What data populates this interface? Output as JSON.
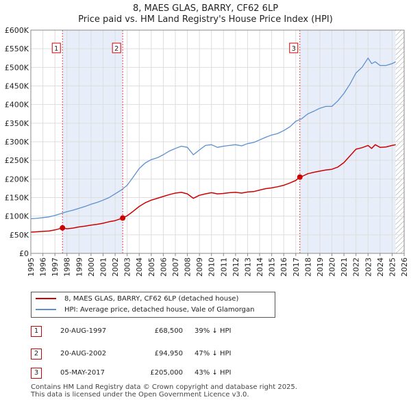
{
  "title_line1": "8, MAES GLAS, BARRY, CF62 6LP",
  "title_line2": "Price paid vs. HM Land Registry's House Price Index (HPI)",
  "legend": {
    "property_label": "8, MAES GLAS, BARRY, CF62 6LP (detached house)",
    "hpi_label": "HPI: Average price, detached house, Vale of Glamorgan"
  },
  "colors": {
    "property": "#cc0000",
    "hpi": "#5b8fcf",
    "shade": "#e8eef9",
    "grid": "#dddddd"
  },
  "sales": [
    {
      "num": "1",
      "date": "20-AUG-1997",
      "price": "£68,500",
      "hpi": "39% ↓ HPI"
    },
    {
      "num": "2",
      "date": "20-AUG-2002",
      "price": "£94,950",
      "hpi": "47% ↓ HPI"
    },
    {
      "num": "3",
      "date": "05-MAY-2017",
      "price": "£205,000",
      "hpi": "43% ↓ HPI"
    }
  ],
  "footer_line1": "Contains HM Land Registry data © Crown copyright and database right 2025.",
  "footer_line2": "This data is licensed under the Open Government Licence v3.0.",
  "chart_data": {
    "type": "line",
    "title": "Price paid vs. HM Land Registry's House Price Index (HPI)",
    "xlim": [
      1995,
      2026
    ],
    "ylim": [
      0,
      600000
    ],
    "x_ticks": [
      1995,
      1996,
      1997,
      1998,
      1999,
      2000,
      2001,
      2002,
      2003,
      2004,
      2005,
      2006,
      2007,
      2008,
      2009,
      2010,
      2011,
      2012,
      2013,
      2014,
      2015,
      2016,
      2017,
      2018,
      2019,
      2020,
      2021,
      2022,
      2023,
      2024,
      2025,
      2026
    ],
    "x_tick_labels": [
      "1995",
      "1996",
      "1997",
      "1998",
      "1999",
      "2000",
      "2001",
      "2002",
      "2003",
      "2004",
      "2005",
      "2006",
      "2007",
      "2008",
      "2009",
      "2010",
      "2011",
      "2012",
      "2013",
      "2014",
      "2015",
      "2016",
      "2017",
      "2018",
      "2019",
      "2020",
      "2021",
      "2022",
      "2023",
      "2024",
      "2025",
      "2026"
    ],
    "y_ticks": [
      0,
      50000,
      100000,
      150000,
      200000,
      250000,
      300000,
      350000,
      400000,
      450000,
      500000,
      550000,
      600000
    ],
    "y_tick_labels": [
      "£0",
      "£50K",
      "£100K",
      "£150K",
      "£200K",
      "£250K",
      "£300K",
      "£350K",
      "£400K",
      "£450K",
      "£500K",
      "£550K",
      "£600K"
    ],
    "shaded_ranges": [
      [
        1997.63,
        2002.63
      ],
      [
        2017.34,
        2025.3
      ]
    ],
    "hatch_from": 2025.3,
    "sale_markers": [
      {
        "label": "1",
        "x": 1997.63,
        "y": 68500
      },
      {
        "label": "2",
        "x": 2002.63,
        "y": 94950
      },
      {
        "label": "3",
        "x": 2017.34,
        "y": 205000
      }
    ],
    "series": [
      {
        "name": "HPI: Average price, detached house, Vale of Glamorgan",
        "x": [
          1995,
          1995.5,
          1996,
          1996.5,
          1997,
          1997.5,
          1998,
          1998.5,
          1999,
          1999.5,
          2000,
          2000.5,
          2001,
          2001.5,
          2002,
          2002.5,
          2003,
          2003.5,
          2004,
          2004.5,
          2005,
          2005.5,
          2006,
          2006.5,
          2007,
          2007.5,
          2008,
          2008.5,
          2009,
          2009.5,
          2010,
          2010.5,
          2011,
          2011.5,
          2012,
          2012.5,
          2013,
          2013.5,
          2014,
          2014.5,
          2015,
          2015.5,
          2016,
          2016.5,
          2017,
          2017.5,
          2018,
          2018.5,
          2019,
          2019.5,
          2020,
          2020.5,
          2021,
          2021.5,
          2022,
          2022.5,
          2023,
          2023.3,
          2023.6,
          2024,
          2024.5,
          2025,
          2025.3
        ],
        "values": [
          93000,
          94000,
          96000,
          98000,
          102000,
          107000,
          112000,
          116000,
          121000,
          126000,
          132000,
          137000,
          143000,
          150000,
          160000,
          170000,
          183000,
          205000,
          228000,
          243000,
          252000,
          257000,
          265000,
          275000,
          282000,
          288000,
          285000,
          265000,
          278000,
          290000,
          292000,
          285000,
          288000,
          290000,
          292000,
          289000,
          295000,
          298000,
          305000,
          312000,
          318000,
          322000,
          330000,
          340000,
          355000,
          362000,
          375000,
          382000,
          390000,
          395000,
          395000,
          410000,
          430000,
          455000,
          485000,
          500000,
          525000,
          510000,
          515000,
          505000,
          505000,
          510000,
          515000
        ]
      },
      {
        "name": "8, MAES GLAS, BARRY, CF62 6LP (detached house)",
        "x": [
          1995,
          1995.5,
          1996,
          1996.5,
          1997,
          1997.63,
          1998,
          1998.5,
          1999,
          1999.5,
          2000,
          2000.5,
          2001,
          2001.5,
          2002,
          2002.63,
          2003,
          2003.5,
          2004,
          2004.5,
          2005,
          2005.5,
          2006,
          2006.5,
          2007,
          2007.5,
          2008,
          2008.5,
          2009,
          2009.5,
          2010,
          2010.5,
          2011,
          2011.5,
          2012,
          2012.5,
          2013,
          2013.5,
          2014,
          2014.5,
          2015,
          2015.5,
          2016,
          2016.5,
          2017,
          2017.34,
          2017.6,
          2018,
          2018.5,
          2019,
          2019.5,
          2020,
          2020.5,
          2021,
          2021.5,
          2022,
          2022.5,
          2023,
          2023.3,
          2023.6,
          2024,
          2024.5,
          2025,
          2025.3
        ],
        "values": [
          57000,
          58000,
          59000,
          60000,
          63000,
          68500,
          66000,
          68000,
          71000,
          73000,
          76000,
          78000,
          81000,
          85000,
          88000,
          94950,
          101000,
          113000,
          126000,
          136000,
          143000,
          148000,
          153000,
          158000,
          162000,
          164000,
          160000,
          148000,
          156000,
          160000,
          163000,
          160000,
          161000,
          163000,
          164000,
          162000,
          165000,
          166000,
          170000,
          174000,
          176000,
          179000,
          183000,
          189000,
          196000,
          205000,
          208000,
          214000,
          218000,
          221000,
          224000,
          226000,
          232000,
          244000,
          262000,
          280000,
          284000,
          290000,
          282000,
          292000,
          285000,
          286000,
          290000,
          292000
        ]
      }
    ]
  }
}
